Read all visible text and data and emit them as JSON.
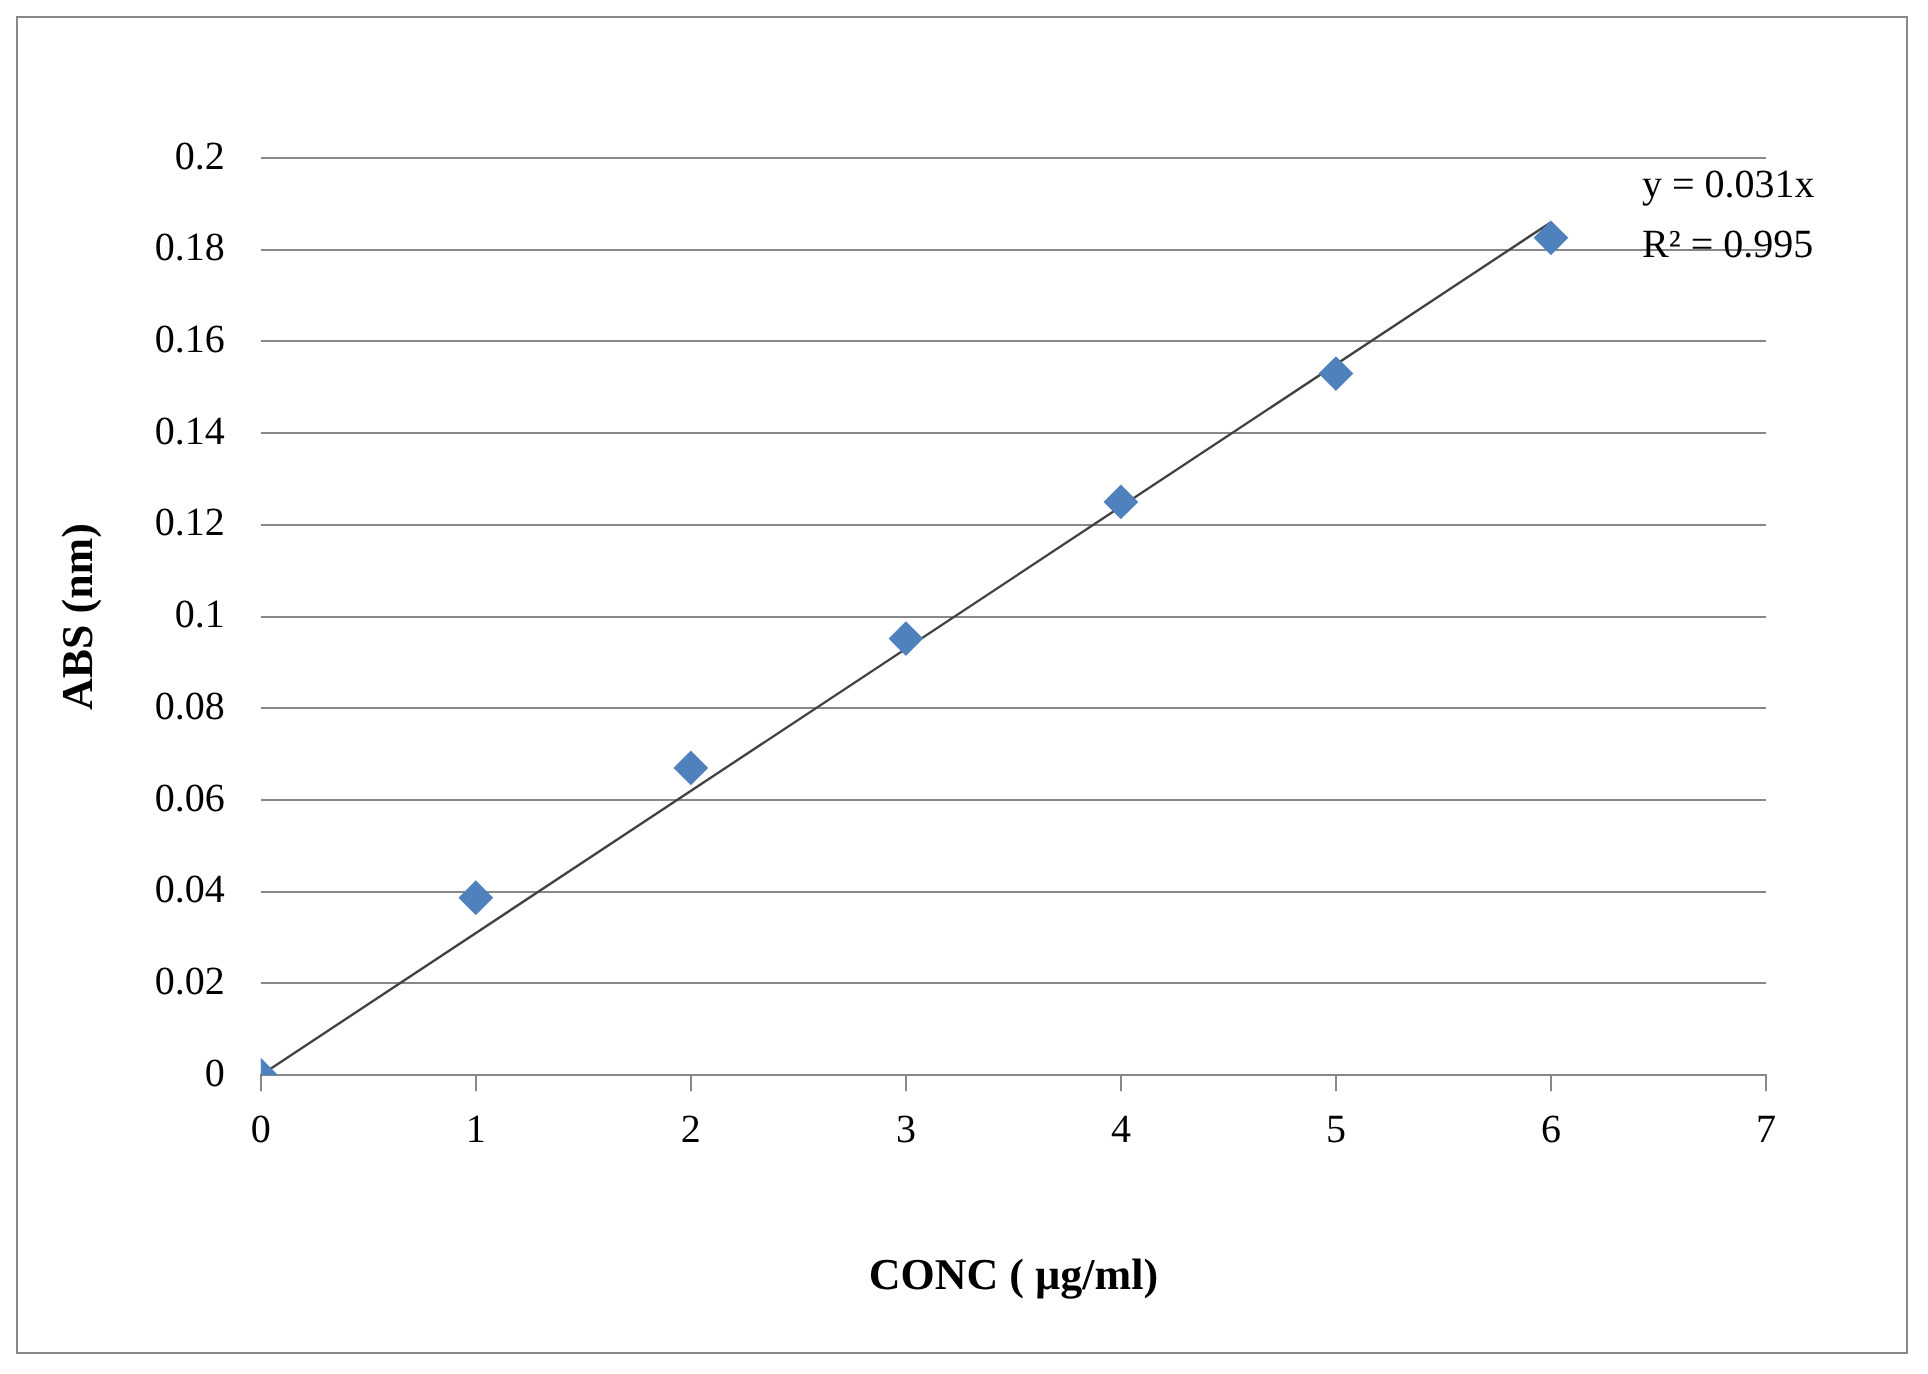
{
  "chart_data": {
    "type": "scatter",
    "xlabel": "CONC ( µg/ml)",
    "ylabel": "ABS (nm)",
    "x": [
      0,
      1,
      2,
      3,
      4,
      5,
      6
    ],
    "series": [
      {
        "type": "scatter",
        "color": "#4f81bd",
        "values": [
          0,
          0.0387,
          0.067,
          0.0952,
          0.125,
          0.153,
          0.1826
        ]
      },
      {
        "type": "line",
        "x": [
          0,
          6
        ],
        "values": [
          0,
          0.186
        ],
        "color": "#404040",
        "marker": "none"
      }
    ],
    "xlim": [
      0,
      7
    ],
    "xticks": [
      0,
      1,
      2,
      3,
      4,
      5,
      6,
      7
    ],
    "ylim": [
      0,
      0.2
    ],
    "yticks": [
      0,
      0.02,
      0.04,
      0.06,
      0.08,
      0.1,
      0.12,
      0.14,
      0.16,
      0.18,
      0.2
    ],
    "grid": "y",
    "legend": false,
    "marker": "diamond",
    "annotations": [
      "y = 0.031x",
      "R² = 0.995"
    ]
  }
}
